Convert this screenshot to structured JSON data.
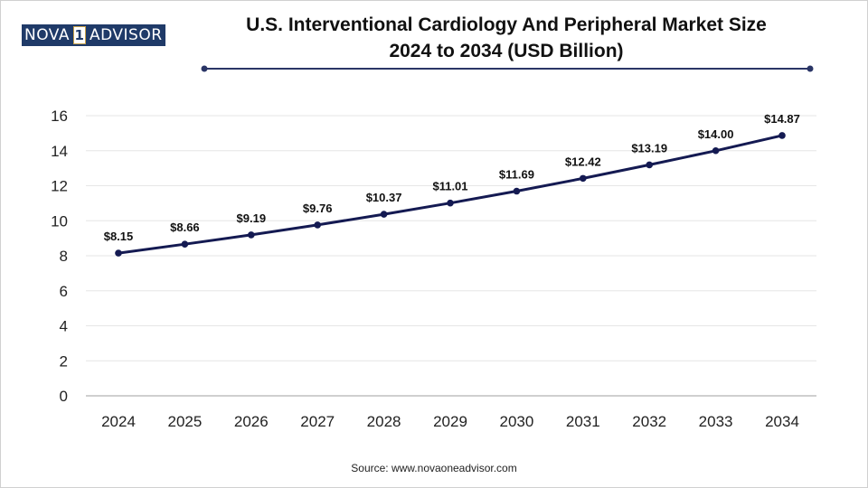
{
  "brand": {
    "part1": "NOVA",
    "part2": "1",
    "part3": "ADVISOR"
  },
  "header": {
    "title_line1": "U.S. Interventional Cardiology And Peripheral Market Size",
    "title_line2": "2024 to 2034 (USD Billion)"
  },
  "footer": {
    "source": "Source: www.novaoneadvisor.com"
  },
  "colors": {
    "line": "#141a52",
    "rule": "#2a3566",
    "grid": "#e6e6e6",
    "axis": "#bfbfbf"
  },
  "chart_data": {
    "type": "line",
    "title": "U.S. Interventional Cardiology And Peripheral Market Size 2024 to 2034 (USD Billion)",
    "xlabel": "",
    "ylabel": "",
    "categories": [
      "2024",
      "2025",
      "2026",
      "2027",
      "2028",
      "2029",
      "2030",
      "2031",
      "2032",
      "2033",
      "2034"
    ],
    "values": [
      8.15,
      8.66,
      9.19,
      9.76,
      10.37,
      11.01,
      11.69,
      12.42,
      13.19,
      14.0,
      14.87
    ],
    "labels": [
      "$8.15",
      "$8.66",
      "$9.19",
      "$9.76",
      "$10.37",
      "$11.01",
      "$11.69",
      "$12.42",
      "$13.19",
      "$14.00",
      "$14.87"
    ],
    "y_ticks": [
      "0",
      "2",
      "4",
      "6",
      "8",
      "10",
      "12",
      "14",
      "16"
    ],
    "ylim": [
      0,
      16
    ],
    "grid": true,
    "legend": "none"
  }
}
